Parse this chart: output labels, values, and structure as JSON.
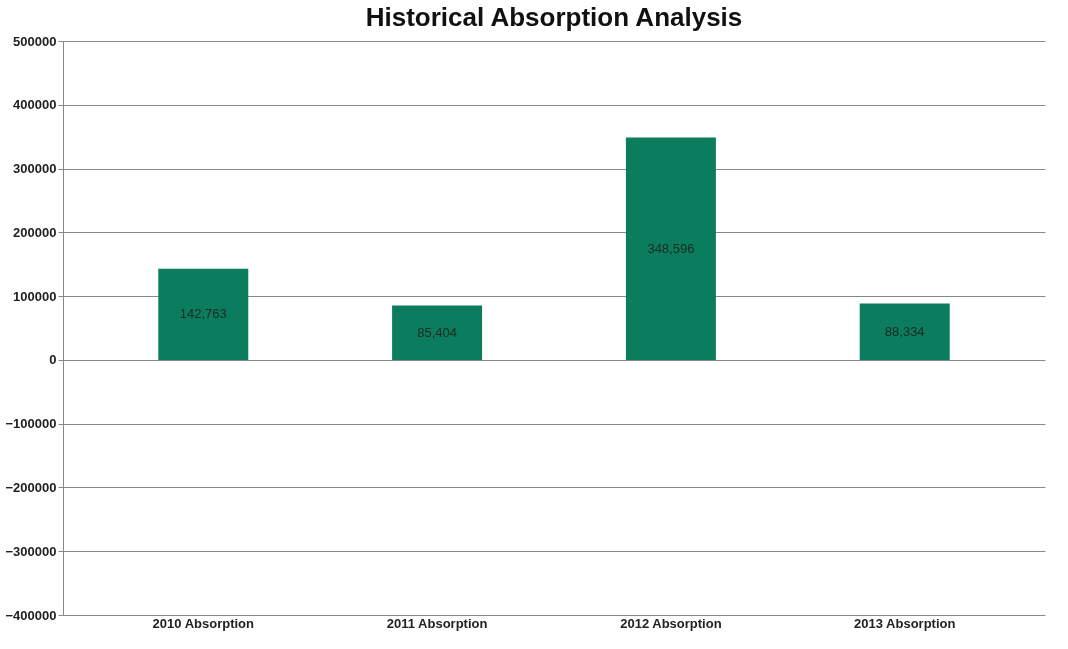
{
  "chart_data": {
    "type": "bar",
    "title": "Historical Absorption Analysis",
    "categories": [
      "2010 Absorption",
      "2011 Absorption",
      "2012 Absorption",
      "2013 Absorption"
    ],
    "values": [
      142763,
      85404,
      348596,
      88334
    ],
    "value_labels": [
      "142,763",
      "85,404",
      "348,596",
      "88,334"
    ],
    "color": "#0b7d5e",
    "ylim": [
      -400000,
      500000
    ],
    "yticks": [
      -400000,
      -300000,
      -200000,
      -100000,
      0,
      100000,
      200000,
      300000,
      400000,
      500000
    ],
    "grid": "y"
  }
}
